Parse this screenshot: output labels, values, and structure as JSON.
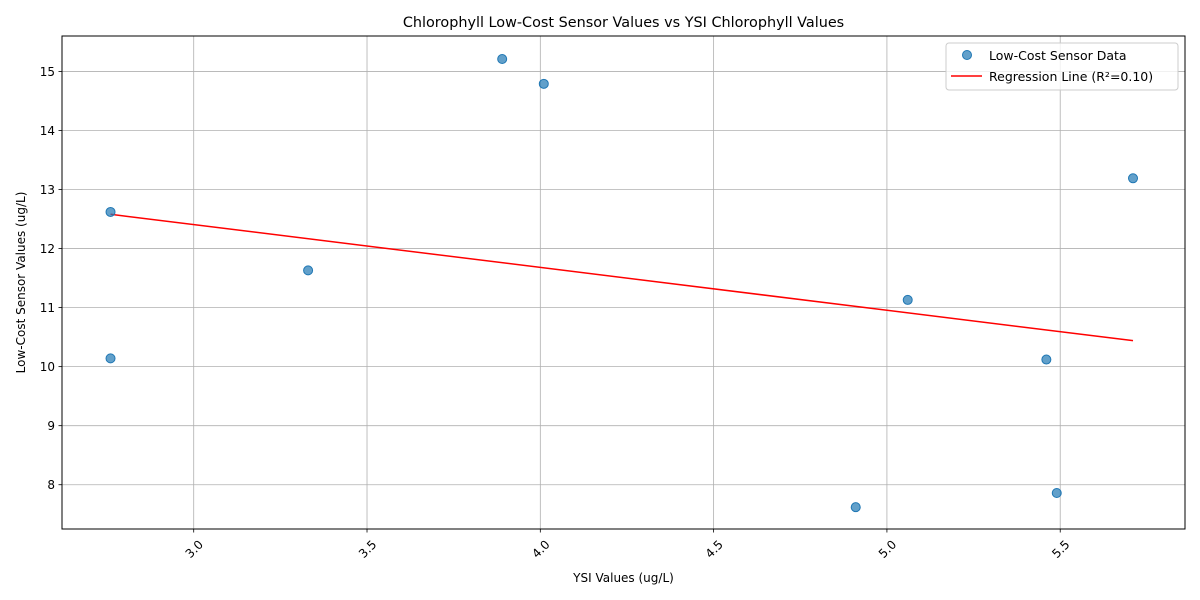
{
  "chart_data": {
    "type": "scatter",
    "title": "Chlorophyll Low-Cost Sensor Values vs YSI Chlorophyll Values",
    "xlabel": "YSI Values (ug/L)",
    "ylabel": "Low-Cost Sensor Values (ug/L)",
    "xlim": [
      2.62,
      5.86
    ],
    "ylim": [
      7.25,
      15.6
    ],
    "x_ticks": [
      "3.0",
      "3.5",
      "4.0",
      "4.5",
      "5.0",
      "5.5"
    ],
    "x_tick_values": [
      3.0,
      3.5,
      4.0,
      4.5,
      5.0,
      5.5
    ],
    "y_ticks": [
      "8",
      "9",
      "10",
      "11",
      "12",
      "13",
      "14",
      "15"
    ],
    "y_tick_values": [
      8,
      9,
      10,
      11,
      12,
      13,
      14,
      15
    ],
    "grid": true,
    "legend_position": "top-right",
    "series": [
      {
        "name": "Low-Cost Sensor Data",
        "kind": "scatter",
        "color": "#1f77b4",
        "points": [
          {
            "x": 2.76,
            "y": 12.62
          },
          {
            "x": 2.76,
            "y": 10.14
          },
          {
            "x": 3.33,
            "y": 11.63
          },
          {
            "x": 3.89,
            "y": 15.21
          },
          {
            "x": 4.01,
            "y": 14.79
          },
          {
            "x": 4.91,
            "y": 7.62
          },
          {
            "x": 5.06,
            "y": 11.13
          },
          {
            "x": 5.46,
            "y": 10.12
          },
          {
            "x": 5.49,
            "y": 7.86
          },
          {
            "x": 5.71,
            "y": 13.19
          }
        ]
      },
      {
        "name": "Regression Line (R²=0.10)",
        "kind": "line",
        "color": "#ff0000",
        "points": [
          {
            "x": 2.76,
            "y": 12.58
          },
          {
            "x": 5.71,
            "y": 10.44
          }
        ]
      }
    ]
  }
}
